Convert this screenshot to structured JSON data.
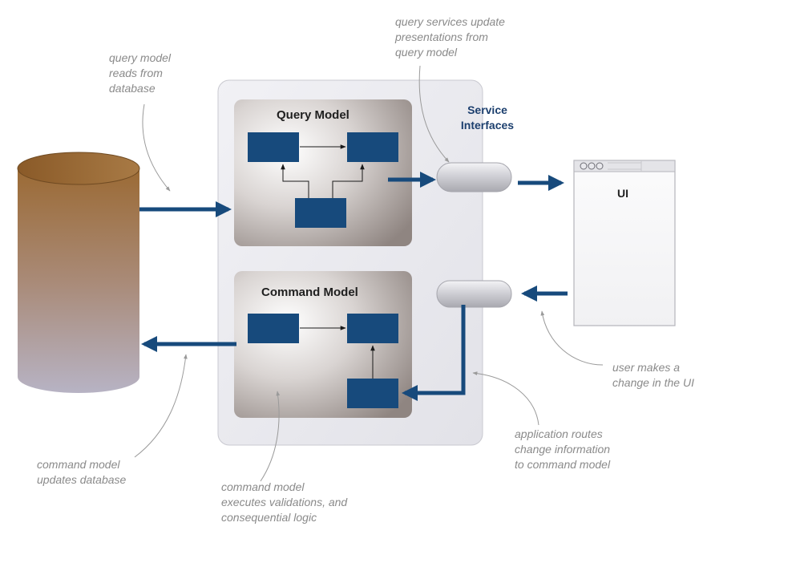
{
  "query_panel": {
    "title": "Query Model"
  },
  "command_panel": {
    "title": "Command Model"
  },
  "service_interfaces": {
    "label": "Service\nInterfaces"
  },
  "ui_window": {
    "label": "UI"
  },
  "annotations": {
    "query_reads": "query model\nreads from\ndatabase",
    "query_services": "query services update\npresentations from\nquery model",
    "user_change": "user makes a\nchange in the UI",
    "app_routes": "application routes\nchange information\nto command model",
    "command_updates": "command model\nupdates database",
    "command_executes": "command model\nexecutes validations, and\nconsequential logic"
  },
  "colors": {
    "box": "#174a7c",
    "arrow": "#174a7c",
    "annotation": "#8a8a8a",
    "panel_outer": "#ececf1",
    "database_top": "#9a6a35"
  }
}
